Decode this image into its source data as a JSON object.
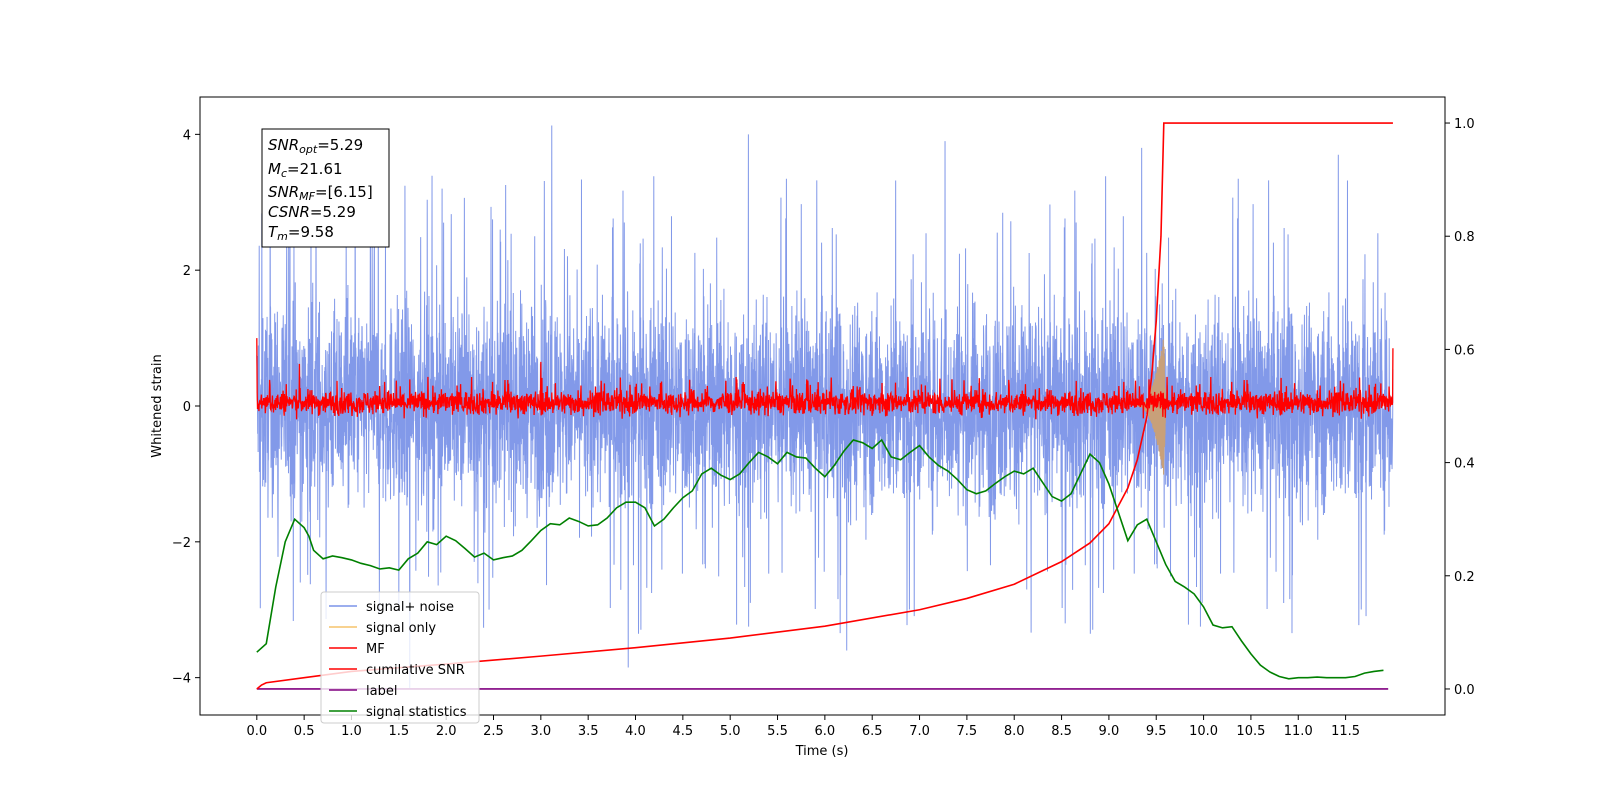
{
  "chart_data": {
    "type": "line",
    "xlabel": "Time (s)",
    "ylabel": "Whitened strain",
    "xlim": [
      -0.6,
      12.55
    ],
    "ylim": [
      -4.55,
      4.55
    ],
    "y2lim": [
      -0.046,
      1.046
    ],
    "x_ticks": [
      0.0,
      0.5,
      1.0,
      1.5,
      2.0,
      2.5,
      3.0,
      3.5,
      4.0,
      4.5,
      5.0,
      5.5,
      6.0,
      6.5,
      7.0,
      7.5,
      8.0,
      8.5,
      9.0,
      9.5,
      10.0,
      10.5,
      11.0,
      11.5
    ],
    "x_tick_labels": [
      "0.0",
      "0.5",
      "1.0",
      "1.5",
      "2.0",
      "2.5",
      "3.0",
      "3.5",
      "4.0",
      "4.5",
      "5.0",
      "5.5",
      "6.0",
      "6.5",
      "7.0",
      "7.5",
      "8.0",
      "8.5",
      "9.0",
      "9.5",
      "10.0",
      "10.5",
      "11.0",
      "11.5"
    ],
    "y_ticks": [
      -4,
      -2,
      0,
      2,
      4
    ],
    "y_tick_labels": [
      "−4",
      "−2",
      "0",
      "2",
      "4"
    ],
    "y2_ticks": [
      0.0,
      0.2,
      0.4,
      0.6,
      0.8,
      1.0
    ],
    "y2_tick_labels": [
      "0.0",
      "0.2",
      "0.4",
      "0.6",
      "0.8",
      "1.0"
    ],
    "annotation": {
      "snr_opt": {
        "var": "SNR",
        "sub": "opt",
        "value": "=5.29"
      },
      "mc": {
        "var": "M",
        "sub": "c",
        "value": "=21.61"
      },
      "snr_mf": {
        "var": "SNR",
        "sub": "MF",
        "value": "=[6.15]"
      },
      "csnr": {
        "var": "CSNR",
        "value": "=5.29"
      },
      "tm": {
        "var": "T",
        "sub": "m",
        "value": "=9.58"
      }
    },
    "legend": {
      "placement": "lower-left",
      "entries": [
        {
          "label": "signal+ noise",
          "color": "#7b93e8"
        },
        {
          "label": "signal only",
          "color": "#f5c36b"
        },
        {
          "label": "MF",
          "color": "#ff0000"
        },
        {
          "label": "cumilative SNR",
          "color": "#ff0000"
        },
        {
          "label": "label",
          "color": "#800080"
        },
        {
          "label": "signal statistics",
          "color": "#008000"
        }
      ]
    },
    "series": [
      {
        "name": "signal+ noise",
        "axis": "left",
        "color": "#7b93e8",
        "x_range": [
          0.0,
          12.0
        ],
        "envelope": {
          "typical_range": [
            -1.6,
            1.6
          ],
          "peaks": [
            3.5,
            4.13,
            4.0,
            3.9,
            3.8,
            3.7
          ],
          "troughs": [
            -4.15,
            -3.85,
            -3.6,
            -3.2,
            -2.9
          ]
        }
      },
      {
        "name": "signal only",
        "axis": "left",
        "color": "#f5c36b",
        "x_range": [
          9.3,
          9.6
        ],
        "peak_amplitude": 1.2
      },
      {
        "name": "MF",
        "axis": "left",
        "color": "#ff0000",
        "x_range": [
          0.0,
          12.0
        ],
        "typical_range": [
          -0.25,
          0.35
        ],
        "spikes": [
          {
            "x": 0.0,
            "y": 1.0
          },
          {
            "x": 0.45,
            "y": 0.62
          },
          {
            "x": 3.0,
            "y": 0.65
          },
          {
            "x": 12.0,
            "y": 0.85
          }
        ]
      },
      {
        "name": "cumilative SNR",
        "axis": "right",
        "color": "#ff0000",
        "x": [
          0.0,
          0.05,
          0.1,
          0.5,
          1.0,
          2.0,
          3.0,
          4.0,
          5.0,
          6.0,
          7.0,
          7.5,
          8.0,
          8.5,
          8.8,
          9.0,
          9.2,
          9.3,
          9.4,
          9.45,
          9.5,
          9.55,
          9.58,
          12.0
        ],
        "y": [
          0.0,
          0.007,
          0.011,
          0.02,
          0.031,
          0.044,
          0.058,
          0.073,
          0.09,
          0.111,
          0.14,
          0.16,
          0.185,
          0.225,
          0.258,
          0.292,
          0.355,
          0.405,
          0.48,
          0.55,
          0.65,
          0.8,
          1.0,
          1.0
        ]
      },
      {
        "name": "label",
        "axis": "right",
        "color": "#800080",
        "x": [
          0.0,
          11.95
        ],
        "y": [
          0.0,
          0.0
        ]
      },
      {
        "name": "signal statistics",
        "axis": "right",
        "color": "#008000",
        "x": [
          0.0,
          0.1,
          0.2,
          0.3,
          0.4,
          0.5,
          0.55,
          0.6,
          0.7,
          0.8,
          0.9,
          1.0,
          1.1,
          1.2,
          1.3,
          1.4,
          1.5,
          1.6,
          1.7,
          1.8,
          1.9,
          2.0,
          2.1,
          2.2,
          2.3,
          2.4,
          2.5,
          2.6,
          2.7,
          2.8,
          2.9,
          3.0,
          3.1,
          3.2,
          3.3,
          3.4,
          3.5,
          3.6,
          3.7,
          3.8,
          3.9,
          4.0,
          4.1,
          4.2,
          4.3,
          4.4,
          4.5,
          4.6,
          4.7,
          4.8,
          4.9,
          5.0,
          5.1,
          5.2,
          5.3,
          5.4,
          5.5,
          5.6,
          5.7,
          5.8,
          5.9,
          6.0,
          6.1,
          6.2,
          6.3,
          6.4,
          6.5,
          6.6,
          6.7,
          6.8,
          6.9,
          7.0,
          7.1,
          7.2,
          7.3,
          7.4,
          7.5,
          7.6,
          7.7,
          7.8,
          7.9,
          8.0,
          8.1,
          8.2,
          8.3,
          8.4,
          8.5,
          8.6,
          8.7,
          8.8,
          8.9,
          9.0,
          9.1,
          9.2,
          9.3,
          9.4,
          9.5,
          9.6,
          9.7,
          9.8,
          9.9,
          10.0,
          10.1,
          10.2,
          10.3,
          10.4,
          10.5,
          10.6,
          10.7,
          10.8,
          10.9,
          11.0,
          11.1,
          11.2,
          11.3,
          11.4,
          11.5,
          11.6,
          11.7,
          11.8,
          11.9
        ],
        "y": [
          0.065,
          0.08,
          0.18,
          0.26,
          0.3,
          0.285,
          0.27,
          0.245,
          0.23,
          0.235,
          0.232,
          0.228,
          0.222,
          0.218,
          0.212,
          0.214,
          0.21,
          0.23,
          0.24,
          0.26,
          0.255,
          0.27,
          0.262,
          0.248,
          0.233,
          0.24,
          0.228,
          0.232,
          0.235,
          0.245,
          0.262,
          0.28,
          0.292,
          0.29,
          0.302,
          0.296,
          0.288,
          0.29,
          0.302,
          0.32,
          0.33,
          0.33,
          0.32,
          0.288,
          0.3,
          0.32,
          0.338,
          0.35,
          0.38,
          0.39,
          0.378,
          0.37,
          0.38,
          0.4,
          0.418,
          0.41,
          0.398,
          0.418,
          0.41,
          0.408,
          0.39,
          0.375,
          0.395,
          0.42,
          0.44,
          0.435,
          0.425,
          0.44,
          0.41,
          0.405,
          0.418,
          0.43,
          0.41,
          0.395,
          0.385,
          0.37,
          0.352,
          0.345,
          0.35,
          0.363,
          0.375,
          0.385,
          0.38,
          0.39,
          0.365,
          0.34,
          0.332,
          0.345,
          0.38,
          0.415,
          0.4,
          0.362,
          0.312,
          0.262,
          0.29,
          0.3,
          0.26,
          0.22,
          0.19,
          0.18,
          0.168,
          0.145,
          0.113,
          0.108,
          0.11,
          0.085,
          0.062,
          0.042,
          0.03,
          0.022,
          0.018,
          0.02,
          0.02,
          0.021,
          0.02,
          0.02,
          0.02,
          0.022,
          0.028,
          0.031,
          0.033
        ]
      }
    ]
  }
}
